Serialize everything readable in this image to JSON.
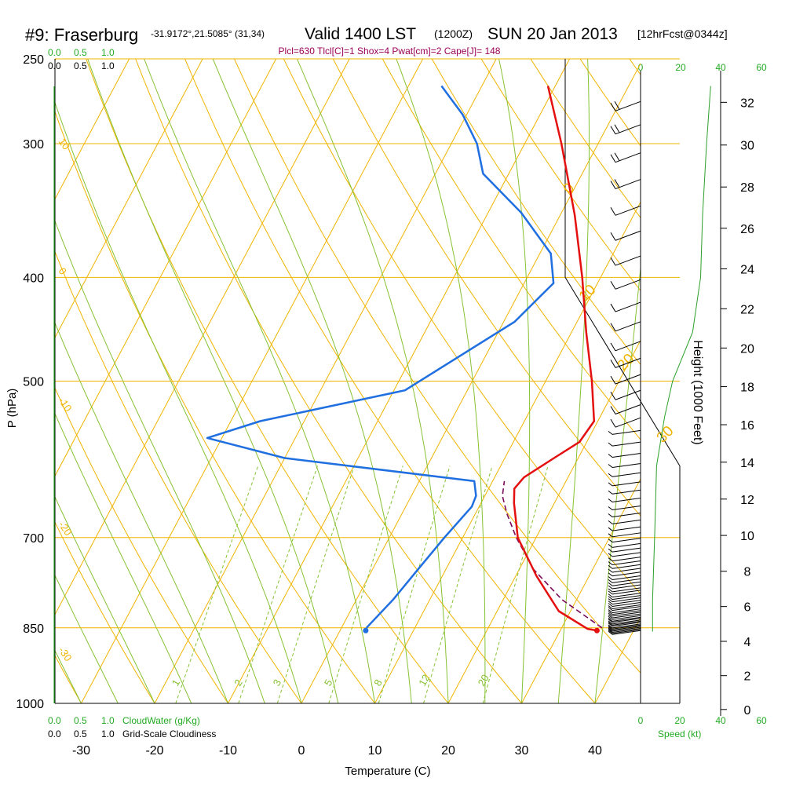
{
  "header": {
    "station": "#9: Fraserburg",
    "coords": "-31.9172°,21.5085° (31,34)",
    "valid": "Valid 1400 LST",
    "zulu": "(1200Z)",
    "date": "SUN 20 Jan 2013",
    "forecast": "[12hrFcst@0344z]",
    "indices": "Plcl=630 Tlcl[C]=1 Shox=4 Pwat[cm]=2 Cape[J]= 148"
  },
  "cloud_scales": {
    "cloudwater_ticks": [
      "0.0",
      "0.5",
      "1.0"
    ],
    "cloudiness_ticks": [
      "0.0",
      "0.5",
      "1.0"
    ],
    "cloudwater_label": "CloudWater (g/Kg)",
    "cloudiness_label": "Grid-Scale Cloudiness"
  },
  "wind_scale": {
    "ticks": [
      "0",
      "20",
      "40",
      "60"
    ],
    "label": "Speed (kt)"
  },
  "colors": {
    "isobar": "#f0b400",
    "isotherm": "#f0b400",
    "dry_adiabat": "#f0b400",
    "moist_adiabat": "#86c232",
    "mixing_ratio": "#86c232",
    "temperature": "#e41010",
    "dewpoint": "#1f6fe0",
    "parcel": "#7a0a5a",
    "wind_speed": "#2aa02a",
    "title_green": "#22aa22",
    "indices": "#9b0057"
  },
  "chart_data": {
    "type": "skew-T log-P sounding",
    "xlabel": "Temperature (C)",
    "ylabel": "P (hPa)",
    "y2label": "Height (1000 Feet)",
    "x_ticks": [
      -30,
      -20,
      -10,
      0,
      10,
      20,
      30,
      40
    ],
    "pressure_ticks": [
      250,
      300,
      400,
      500,
      700,
      850,
      1000
    ],
    "height_ticks_kft": [
      0,
      2,
      4,
      6,
      8,
      10,
      12,
      14,
      16,
      18,
      20,
      22,
      24,
      26,
      28,
      30,
      32
    ],
    "dry_adiabat_labels": [
      "10",
      "0",
      "-10",
      "-20",
      "-30"
    ],
    "moist_adiabat_labels": [
      "0",
      "10",
      "20",
      "30"
    ],
    "mixing_ratio_labels": [
      "1",
      "2",
      "3",
      "5",
      "8",
      "12",
      "20"
    ],
    "temperature": [
      {
        "p": 855,
        "t": 35.0
      },
      {
        "p": 852,
        "t": 33.6
      },
      {
        "p": 820,
        "t": 28.4
      },
      {
        "p": 760,
        "t": 22.8
      },
      {
        "p": 700,
        "t": 17.5
      },
      {
        "p": 650,
        "t": 14.5
      },
      {
        "p": 630,
        "t": 13.5
      },
      {
        "p": 615,
        "t": 14.0
      },
      {
        "p": 590,
        "t": 16.7
      },
      {
        "p": 570,
        "t": 19.0
      },
      {
        "p": 545,
        "t": 19.5
      },
      {
        "p": 500,
        "t": 16.3
      },
      {
        "p": 450,
        "t": 12.0
      },
      {
        "p": 400,
        "t": 7.5
      },
      {
        "p": 350,
        "t": 2.0
      },
      {
        "p": 300,
        "t": -5.0
      },
      {
        "p": 265,
        "t": -11.0
      }
    ],
    "dewpoint": [
      {
        "p": 850,
        "t": 3.4
      },
      {
        "p": 800,
        "t": 5.0
      },
      {
        "p": 750,
        "t": 6.2
      },
      {
        "p": 700,
        "t": 7.5
      },
      {
        "p": 655,
        "t": 9.0
      },
      {
        "p": 640,
        "t": 8.8
      },
      {
        "p": 620,
        "t": 7.5
      },
      {
        "p": 590,
        "t": -20.0
      },
      {
        "p": 565,
        "t": -32.0
      },
      {
        "p": 545,
        "t": -26.0
      },
      {
        "p": 510,
        "t": -8.5
      },
      {
        "p": 440,
        "t": 1.5
      },
      {
        "p": 405,
        "t": 4.0
      },
      {
        "p": 380,
        "t": 1.5
      },
      {
        "p": 348,
        "t": -5.5
      },
      {
        "p": 320,
        "t": -13.5
      },
      {
        "p": 300,
        "t": -16.5
      },
      {
        "p": 282,
        "t": -20.5
      },
      {
        "p": 265,
        "t": -25.5
      }
    ],
    "parcel": [
      {
        "p": 850,
        "t": 35.5
      },
      {
        "p": 800,
        "t": 28.0
      },
      {
        "p": 750,
        "t": 22.0
      },
      {
        "p": 700,
        "t": 17.3
      },
      {
        "p": 665,
        "t": 14.3
      },
      {
        "p": 640,
        "t": 12.4
      },
      {
        "p": 620,
        "t": 11.6
      }
    ],
    "surface_temperature": {
      "p": 855,
      "t": 35.0
    },
    "surface_dewpoint": {
      "p": 855,
      "t": 3.5
    },
    "wind_barb_levels_hpa": [
      855,
      853,
      851,
      849,
      847,
      845,
      843,
      840,
      838,
      836,
      833,
      831,
      828,
      825,
      822,
      819,
      816,
      812,
      809,
      805,
      801,
      797,
      793,
      789,
      784,
      780,
      775,
      770,
      765,
      760,
      754,
      748,
      742,
      736,
      730,
      723,
      716,
      709,
      701,
      693,
      684,
      674,
      664,
      654,
      643,
      632,
      621,
      609,
      597,
      584,
      570,
      556,
      541,
      526,
      510,
      493,
      476,
      459,
      440,
      422,
      402,
      382,
      362,
      343,
      324,
      306,
      288,
      274
    ]
  }
}
